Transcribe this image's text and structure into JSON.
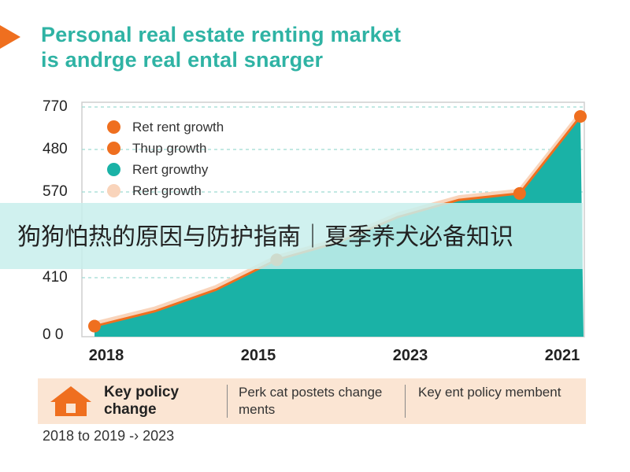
{
  "header": {
    "title_line1": "Personal real estate renting market",
    "title_line2": "is andrge real ental snarger",
    "accent_color": "#ef6f1f",
    "title_color": "#2fb3a4"
  },
  "chart_data": {
    "type": "area",
    "y_tick_labels": [
      "770",
      "480",
      "570",
      "410",
      "0 0"
    ],
    "x_tick_labels": [
      "2018",
      "2015",
      "2023",
      "2021"
    ],
    "legend": [
      {
        "label": "Ret rent growth",
        "color": "#ef6f1f"
      },
      {
        "label": "Thup growth",
        "color": "#ef6f1f"
      },
      {
        "label": "Rert growthy",
        "color": "#1ab2a6"
      },
      {
        "label": "Rert growth",
        "color": "#f9d4bb"
      }
    ],
    "series": [
      {
        "values": [
          0.02,
          0.09,
          0.19,
          0.33,
          0.41,
          0.53,
          0.61,
          0.64,
          1.0
        ],
        "markers": [
          0,
          3,
          7,
          8
        ],
        "fill_color": "#1ab2a6",
        "line_color": "#ef6f1f"
      }
    ],
    "grid": true,
    "legend_position": "top-left"
  },
  "overlay_banner": {
    "text": "狗狗怕热的原因与防护指南｜夏季养犬必备知识"
  },
  "footer": {
    "policy_title": "Key policy change",
    "policy_icon": "house-icon",
    "column2": "Perk cat postets change ments",
    "column3": "Key ent policy membent",
    "timeline_note": "2018 to 2019 -› 2023"
  }
}
